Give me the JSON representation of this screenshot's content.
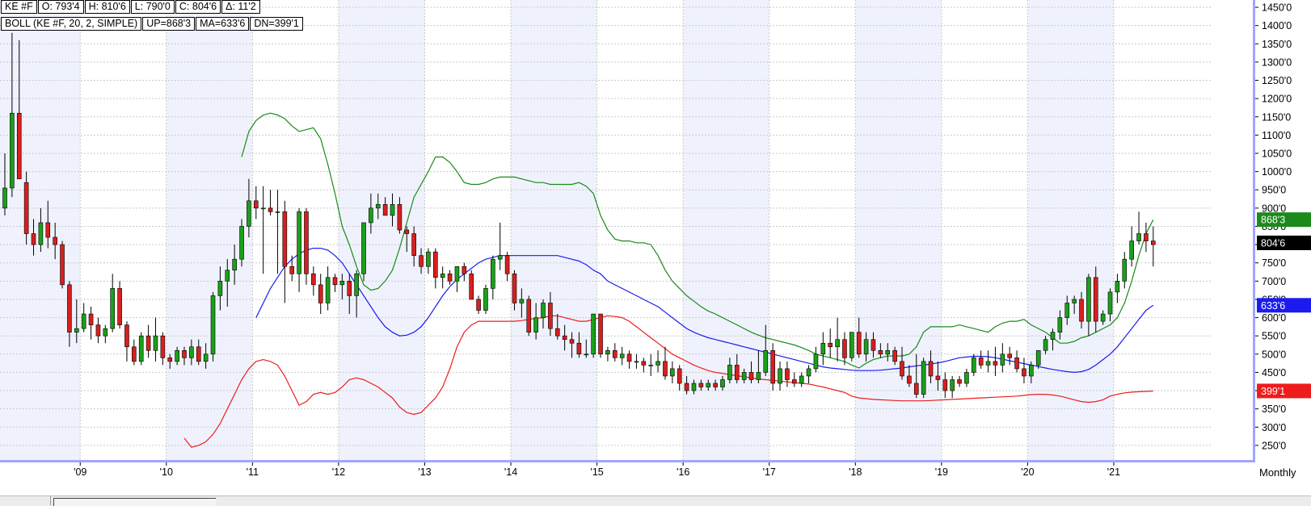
{
  "header": {
    "row1": [
      "KE #F",
      "O: 793'4",
      "H: 810'6",
      "L: 790'0",
      "C: 804'6",
      "Δ: 11'2"
    ],
    "row2": [
      "BOLL (KE #F, 20, 2, SIMPLE)",
      "UP=868'3",
      "MA=633'6",
      "DN=399'1"
    ]
  },
  "timeframe_label": "Monthly",
  "price_tags": [
    {
      "label": "868'3",
      "value": 868.375,
      "color": "#1a8a1a"
    },
    {
      "label": "804'6",
      "value": 804.75,
      "color": "#000000"
    },
    {
      "label": "633'6",
      "value": 633.75,
      "color": "#1b1bf0"
    },
    {
      "label": "399'1",
      "value": 399.125,
      "color": "#ee1c1c"
    }
  ],
  "colors": {
    "upper_band": "#1a8a1a",
    "middle_band": "#1b1bf0",
    "lower_band": "#ee1c1c",
    "candle_up": "#1aa01a",
    "candle_down": "#d81f1f",
    "axis_line": "#9fa6ff",
    "year_shade": "#eff2fc"
  },
  "chart_data": {
    "type": "candlestick",
    "symbol": "KE #F",
    "indicator": "BOLL (KE #F, 20, 2, SIMPLE)",
    "ylim": [
      210,
      1470
    ],
    "y_ticks": [
      "1450'0",
      "1400'0",
      "1350'0",
      "1300'0",
      "1250'0",
      "1200'0",
      "1150'0",
      "1100'0",
      "1050'0",
      "1000'0",
      "950'0",
      "900'0",
      "850'0",
      "800'0",
      "750'0",
      "700'0",
      "650'0",
      "600'0",
      "550'0",
      "500'0",
      "450'0",
      "400'0",
      "350'0",
      "300'0",
      "250'0"
    ],
    "x_ticks": [
      "'09",
      "'10",
      "'11",
      "'12",
      "'13",
      "'14",
      "'15",
      "'16",
      "'17",
      "'18",
      "'19",
      "'20",
      "'21"
    ],
    "start_month": "2008-02",
    "candles_ohlc_approx": [
      [
        900,
        1050,
        880,
        955
      ],
      [
        955,
        1380,
        930,
        1160
      ],
      [
        1160,
        1360,
        980,
        980
      ],
      [
        970,
        1000,
        800,
        830
      ],
      [
        830,
        870,
        770,
        800
      ],
      [
        800,
        900,
        780,
        860
      ],
      [
        860,
        920,
        790,
        820
      ],
      [
        820,
        860,
        760,
        800
      ],
      [
        800,
        810,
        680,
        690
      ],
      [
        690,
        700,
        520,
        560
      ],
      [
        560,
        650,
        530,
        570
      ],
      [
        570,
        640,
        560,
        610
      ],
      [
        610,
        630,
        540,
        580
      ],
      [
        580,
        600,
        530,
        550
      ],
      [
        550,
        580,
        530,
        570
      ],
      [
        570,
        720,
        560,
        680
      ],
      [
        680,
        700,
        570,
        580
      ],
      [
        580,
        590,
        480,
        520
      ],
      [
        520,
        540,
        470,
        480
      ],
      [
        480,
        560,
        470,
        550
      ],
      [
        550,
        580,
        490,
        510
      ],
      [
        510,
        600,
        480,
        550
      ],
      [
        550,
        560,
        470,
        490
      ],
      [
        490,
        500,
        460,
        480
      ],
      [
        480,
        520,
        470,
        510
      ],
      [
        510,
        520,
        470,
        490
      ],
      [
        490,
        540,
        470,
        520
      ],
      [
        520,
        540,
        470,
        480
      ],
      [
        480,
        530,
        460,
        500
      ],
      [
        500,
        670,
        480,
        660
      ],
      [
        660,
        740,
        620,
        700
      ],
      [
        700,
        760,
        630,
        730
      ],
      [
        730,
        800,
        690,
        760
      ],
      [
        760,
        870,
        740,
        850
      ],
      [
        850,
        980,
        820,
        920
      ],
      [
        920,
        960,
        870,
        900
      ],
      [
        900,
        960,
        720,
        900
      ],
      [
        900,
        950,
        880,
        890
      ],
      [
        890,
        950,
        720,
        890
      ],
      [
        890,
        920,
        640,
        740
      ],
      [
        740,
        770,
        700,
        720
      ],
      [
        720,
        900,
        670,
        890
      ],
      [
        890,
        900,
        690,
        720
      ],
      [
        720,
        740,
        660,
        690
      ],
      [
        690,
        720,
        610,
        640
      ],
      [
        640,
        740,
        620,
        710
      ],
      [
        710,
        720,
        670,
        690
      ],
      [
        690,
        720,
        650,
        700
      ],
      [
        700,
        720,
        610,
        660
      ],
      [
        660,
        730,
        600,
        720
      ],
      [
        720,
        860,
        700,
        860
      ],
      [
        860,
        940,
        830,
        900
      ],
      [
        900,
        940,
        870,
        910
      ],
      [
        910,
        930,
        880,
        880
      ],
      [
        880,
        940,
        850,
        910
      ],
      [
        910,
        930,
        830,
        840
      ],
      [
        840,
        850,
        780,
        830
      ],
      [
        830,
        850,
        740,
        770
      ],
      [
        770,
        790,
        720,
        740
      ],
      [
        740,
        790,
        720,
        780
      ],
      [
        780,
        790,
        680,
        710
      ],
      [
        710,
        740,
        680,
        720
      ],
      [
        720,
        730,
        690,
        700
      ],
      [
        700,
        740,
        670,
        740
      ],
      [
        740,
        750,
        700,
        720
      ],
      [
        720,
        730,
        650,
        650
      ],
      [
        650,
        660,
        610,
        620
      ],
      [
        620,
        690,
        610,
        680
      ],
      [
        680,
        770,
        650,
        760
      ],
      [
        760,
        860,
        730,
        770
      ],
      [
        770,
        780,
        700,
        720
      ],
      [
        720,
        730,
        620,
        640
      ],
      [
        640,
        680,
        600,
        650
      ],
      [
        650,
        660,
        550,
        560
      ],
      [
        560,
        640,
        540,
        600
      ],
      [
        600,
        650,
        570,
        640
      ],
      [
        640,
        670,
        550,
        570
      ],
      [
        570,
        610,
        540,
        550
      ],
      [
        550,
        580,
        510,
        540
      ],
      [
        540,
        560,
        490,
        530
      ],
      [
        530,
        560,
        490,
        500
      ],
      [
        500,
        540,
        490,
        500
      ],
      [
        500,
        610,
        490,
        610
      ],
      [
        610,
        610,
        490,
        500
      ],
      [
        500,
        520,
        480,
        510
      ],
      [
        510,
        530,
        480,
        490
      ],
      [
        490,
        520,
        470,
        500
      ],
      [
        500,
        510,
        460,
        480
      ],
      [
        480,
        500,
        460,
        480
      ],
      [
        480,
        490,
        450,
        470
      ],
      [
        470,
        500,
        440,
        470
      ],
      [
        470,
        510,
        450,
        480
      ],
      [
        480,
        520,
        430,
        440
      ],
      [
        440,
        480,
        420,
        460
      ],
      [
        460,
        470,
        400,
        420
      ],
      [
        420,
        440,
        390,
        400
      ],
      [
        400,
        430,
        390,
        420
      ],
      [
        420,
        430,
        400,
        410
      ],
      [
        410,
        430,
        400,
        420
      ],
      [
        420,
        430,
        400,
        410
      ],
      [
        410,
        440,
        400,
        430
      ],
      [
        430,
        490,
        420,
        470
      ],
      [
        470,
        500,
        420,
        430
      ],
      [
        430,
        460,
        420,
        450
      ],
      [
        450,
        480,
        420,
        430
      ],
      [
        430,
        510,
        420,
        450
      ],
      [
        450,
        580,
        440,
        510
      ],
      [
        510,
        530,
        400,
        420
      ],
      [
        420,
        480,
        400,
        460
      ],
      [
        460,
        480,
        410,
        430
      ],
      [
        430,
        450,
        410,
        420
      ],
      [
        420,
        450,
        410,
        440
      ],
      [
        440,
        470,
        420,
        460
      ],
      [
        460,
        520,
        450,
        500
      ],
      [
        500,
        560,
        470,
        530
      ],
      [
        530,
        570,
        490,
        520
      ],
      [
        520,
        600,
        480,
        540
      ],
      [
        540,
        560,
        470,
        490
      ],
      [
        490,
        560,
        480,
        560
      ],
      [
        560,
        600,
        490,
        500
      ],
      [
        500,
        560,
        480,
        540
      ],
      [
        540,
        560,
        490,
        510
      ],
      [
        510,
        530,
        490,
        500
      ],
      [
        500,
        530,
        480,
        510
      ],
      [
        510,
        520,
        470,
        480
      ],
      [
        480,
        520,
        430,
        440
      ],
      [
        440,
        470,
        410,
        420
      ],
      [
        420,
        500,
        380,
        390
      ],
      [
        390,
        490,
        380,
        480
      ],
      [
        480,
        510,
        420,
        440
      ],
      [
        440,
        480,
        400,
        430
      ],
      [
        430,
        450,
        380,
        400
      ],
      [
        400,
        440,
        380,
        430
      ],
      [
        430,
        440,
        410,
        420
      ],
      [
        420,
        460,
        410,
        450
      ],
      [
        450,
        500,
        440,
        490
      ],
      [
        490,
        510,
        460,
        470
      ],
      [
        470,
        510,
        450,
        480
      ],
      [
        480,
        520,
        440,
        470
      ],
      [
        470,
        530,
        450,
        500
      ],
      [
        500,
        520,
        470,
        490
      ],
      [
        490,
        510,
        450,
        460
      ],
      [
        460,
        490,
        420,
        440
      ],
      [
        440,
        480,
        420,
        470
      ],
      [
        470,
        510,
        460,
        510
      ],
      [
        510,
        550,
        500,
        540
      ],
      [
        540,
        570,
        510,
        560
      ],
      [
        560,
        620,
        540,
        600
      ],
      [
        600,
        660,
        580,
        640
      ],
      [
        640,
        660,
        610,
        650
      ],
      [
        650,
        670,
        570,
        590
      ],
      [
        590,
        720,
        550,
        710
      ],
      [
        710,
        740,
        560,
        590
      ],
      [
        590,
        620,
        580,
        610
      ],
      [
        610,
        680,
        590,
        670
      ],
      [
        670,
        720,
        640,
        700
      ],
      [
        700,
        780,
        680,
        760
      ],
      [
        760,
        850,
        740,
        810
      ],
      [
        810,
        890,
        800,
        830
      ],
      [
        830,
        860,
        780,
        810
      ],
      [
        810,
        850,
        740,
        800
      ]
    ],
    "series": [
      {
        "name": "UP",
        "values_approx": [
          1040,
          1110,
          1140,
          1155,
          1160,
          1155,
          1145,
          1125,
          1110,
          1115,
          1120,
          1090,
          1020,
          940,
          850,
          800,
          740,
          690,
          675,
          680,
          700,
          730,
          790,
          860,
          930,
          965,
          1000,
          1040,
          1040,
          1025,
          1000,
          970,
          965,
          965,
          970,
          980,
          985,
          985,
          985,
          980,
          975,
          970,
          970,
          965,
          965,
          965,
          965,
          970,
          960,
          940,
          880,
          840,
          815,
          810,
          810,
          805,
          805,
          800,
          770,
          730,
          700,
          680,
          660,
          645,
          630,
          618,
          610,
          600,
          590,
          580,
          570,
          560,
          552,
          545,
          540,
          535,
          530,
          525,
          518,
          510,
          500,
          495,
          490,
          485,
          480,
          470,
          462,
          475,
          485,
          490,
          495,
          495,
          495,
          500,
          520,
          560,
          575,
          575,
          575,
          575,
          580,
          575,
          570,
          565,
          560,
          575,
          585,
          590,
          590,
          595,
          580,
          570,
          560,
          545,
          530,
          530,
          535,
          545,
          550,
          560,
          570,
          580,
          600,
          640,
          700,
          770,
          830,
          868
        ]
      },
      {
        "name": "MA",
        "values_approx": [
          600,
          640,
          680,
          710,
          740,
          760,
          775,
          785,
          790,
          790,
          785,
          770,
          750,
          720,
          690,
          660,
          630,
          600,
          575,
          560,
          550,
          552,
          560,
          575,
          600,
          630,
          660,
          685,
          705,
          720,
          735,
          750,
          760,
          765,
          770,
          770,
          770,
          770,
          770,
          770,
          770,
          770,
          770,
          765,
          760,
          755,
          745,
          730,
          720,
          700,
          690,
          680,
          670,
          660,
          650,
          640,
          630,
          615,
          600,
          585,
          570,
          560,
          552,
          545,
          540,
          535,
          530,
          525,
          520,
          515,
          510,
          505,
          500,
          495,
          490,
          485,
          480,
          475,
          470,
          465,
          462,
          460,
          458,
          456,
          455,
          455,
          455,
          456,
          458,
          460,
          462,
          465,
          468,
          470,
          473,
          476,
          480,
          485,
          490,
          492,
          494,
          494,
          493,
          490,
          486,
          482,
          478,
          474,
          470,
          466,
          462,
          458,
          455,
          452,
          450,
          452,
          458,
          470,
          485,
          500,
          520,
          545,
          570,
          595,
          620,
          634
        ]
      },
      {
        "name": "DN",
        "values_approx": [
          270,
          245,
          250,
          260,
          280,
          310,
          350,
          390,
          430,
          460,
          480,
          485,
          480,
          470,
          440,
          400,
          360,
          370,
          390,
          395,
          390,
          395,
          410,
          430,
          435,
          430,
          420,
          410,
          395,
          380,
          355,
          340,
          335,
          340,
          360,
          380,
          410,
          460,
          520,
          560,
          580,
          590,
          590,
          590,
          590,
          590,
          590,
          592,
          595,
          598,
          600,
          605,
          605,
          600,
          595,
          590,
          590,
          595,
          600,
          605,
          603,
          600,
          590,
          575,
          560,
          545,
          530,
          515,
          500,
          490,
          480,
          470,
          462,
          455,
          450,
          447,
          444,
          441,
          438,
          435,
          432,
          430,
          428,
          426,
          424,
          422,
          420,
          418,
          414,
          410,
          405,
          400,
          395,
          385,
          380,
          378,
          376,
          375,
          374,
          373,
          372,
          372,
          372,
          372,
          373,
          374,
          375,
          376,
          377,
          378,
          379,
          380,
          381,
          382,
          383,
          384,
          385,
          387,
          389,
          390,
          390,
          388,
          385,
          380,
          375,
          370,
          368,
          370,
          375,
          385,
          390,
          394,
          396,
          397,
          398,
          399
        ]
      }
    ]
  }
}
